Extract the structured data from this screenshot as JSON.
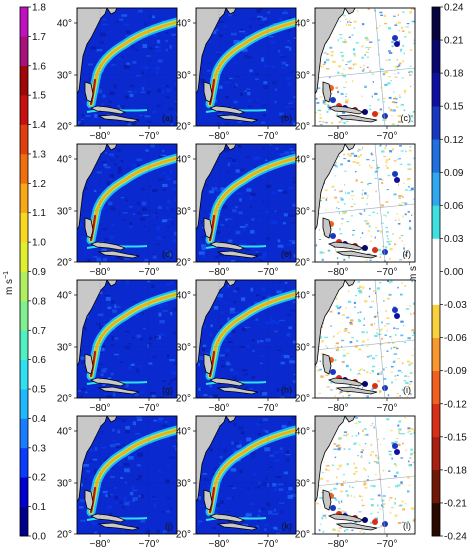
{
  "figure": {
    "left_colorbar": {
      "unit": "m s",
      "unit_exp": "−1",
      "ticks": [
        "1.8",
        "1.7",
        "1.6",
        "1.5",
        "1.4",
        "1.3",
        "1.2",
        "1.1",
        "1.0",
        "0.9",
        "0.8",
        "0.7",
        "0.6",
        "0.5",
        "0.4",
        "0.3",
        "0.2",
        "0.1",
        "0.0"
      ],
      "colors": [
        "#00008a",
        "#0000d0",
        "#0a3cff",
        "#1a7cff",
        "#20b8ff",
        "#30e0f0",
        "#50f0c0",
        "#80f090",
        "#b0f060",
        "#e0f030",
        "#f8d820",
        "#f8a818",
        "#f07010",
        "#e04010",
        "#c81010",
        "#a00808",
        "#a8107a",
        "#c010c0"
      ]
    },
    "right_colorbar": {
      "unit": "m s",
      "unit_exp": "−1",
      "ticks": [
        "0.24",
        "0.21",
        "0.18",
        "0.15",
        "0.12",
        "0.09",
        "0.06",
        "0.03",
        "0.00",
        "-0.03",
        "-0.06",
        "-0.09",
        "-0.12",
        "-0.15",
        "-0.18",
        "-0.21",
        "-0.24"
      ],
      "colors": [
        "#2a0a00",
        "#701808",
        "#a82010",
        "#d83018",
        "#f06020",
        "#f89830",
        "#f8d040",
        "#ffffff",
        "#ffffff",
        "#40e0e0",
        "#30a8f0",
        "#2070e0",
        "#1838c0",
        "#1010a0",
        "#0a0870",
        "#080440"
      ]
    },
    "lat_ticks": [
      "40°",
      "30°",
      "20°"
    ],
    "lon_ticks": [
      "−80°",
      "−70°"
    ],
    "panels": [
      {
        "label": "(a)",
        "kind": "speed"
      },
      {
        "label": "(b)",
        "kind": "speed"
      },
      {
        "label": "(c)",
        "kind": "diff"
      },
      {
        "label": "(d)",
        "kind": "speed"
      },
      {
        "label": "(e)",
        "kind": "speed"
      },
      {
        "label": "(f)",
        "kind": "diff"
      },
      {
        "label": "(g)",
        "kind": "speed"
      },
      {
        "label": "(h)",
        "kind": "speed"
      },
      {
        "label": "(i)",
        "kind": "diff"
      },
      {
        "label": "(j)",
        "kind": "speed"
      },
      {
        "label": "(k)",
        "kind": "speed"
      },
      {
        "label": "(l)",
        "kind": "diff"
      }
    ],
    "land_color": "#c8c8c8",
    "ocean_speed_color": "#0a2ad0",
    "ocean_diff_color": "#ffffff"
  }
}
